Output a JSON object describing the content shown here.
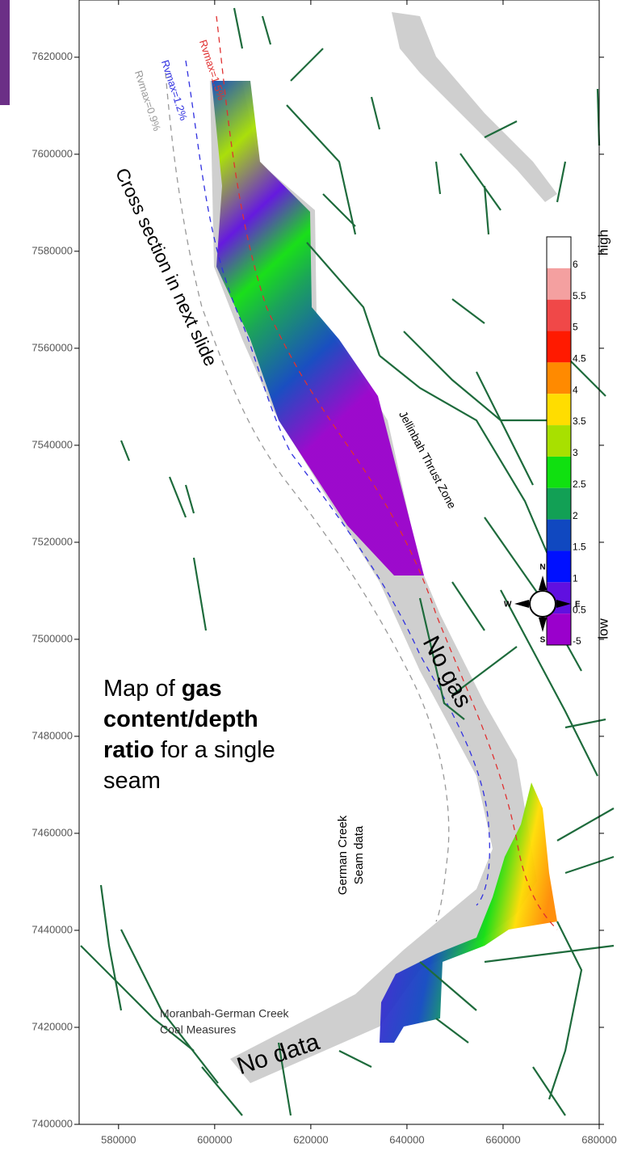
{
  "map": {
    "xlim": [
      571800,
      680000
    ],
    "ylim": [
      7400000,
      7631800
    ],
    "xticks": [
      580000,
      600000,
      620000,
      640000,
      660000,
      680000
    ],
    "yticks": [
      7400000,
      7420000,
      7440000,
      7460000,
      7480000,
      7500000,
      7520000,
      7540000,
      7560000,
      7580000,
      7600000,
      7620000
    ],
    "colorbar": {
      "top": "high",
      "bottom": "low",
      "colors": [
        "#ffffff",
        "#f4a0a0",
        "#f04848",
        "#ff1a00",
        "#ff8a00",
        "#ffdd00",
        "#a8e000",
        "#10e010",
        "#12a055",
        "#1048c0",
        "#0010ff",
        "#6010e0",
        "#9a00cc"
      ],
      "labels": [
        "6",
        "5.5",
        "5",
        "4.5",
        "4",
        "3.5",
        "3",
        "2.5",
        "2",
        "1.5",
        "1",
        "0.5",
        "-5"
      ]
    },
    "annotations": {
      "rv_red": "Rvmax=1.5%",
      "rv_blue": "Rvmax=1.2%",
      "rv_gray": "Rvmax=0.9%",
      "cross_section": "Cross section in next slide",
      "thrust": "Jellinbah Thrust Zone",
      "no_gas": "No gas",
      "no_data": "No data",
      "seam_1": "German Creek",
      "seam_2": "Seam data",
      "measures_1": "Moranbah-German Creek",
      "measures_2": "Coal Measures",
      "caption": [
        [
          "Map of ",
          "gas"
        ],
        [
          "content/depth"
        ],
        [
          "ratio",
          " for a single"
        ],
        [
          "seam"
        ]
      ]
    },
    "compass": {
      "n": "N",
      "s": "S",
      "e": "E",
      "w": "W"
    }
  }
}
